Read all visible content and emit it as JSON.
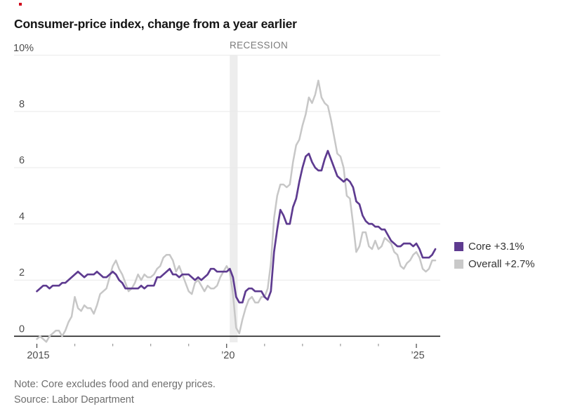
{
  "title": "Consumer-price index, change from a year earlier",
  "recession_label": "RECESSION",
  "note": "Note: Core excludes food and energy prices.",
  "source": "Source: Labor Department",
  "legend": {
    "position": "right",
    "items": [
      {
        "name": "Core",
        "label": "Core +3.1%",
        "color": "#5e3b90"
      },
      {
        "name": "Overall",
        "label": "Overall +2.7%",
        "color": "#c9c9c9"
      }
    ]
  },
  "colors": {
    "core_line": "#5e3b90",
    "overall_line": "#c7c7c7",
    "grid_line": "#e9e9e9",
    "zero_axis": "#1f1f1f",
    "tick_major": "#444444",
    "tick_minor": "#999999",
    "recession_band": "#ededed",
    "axis_text": "#4d4d4d",
    "red_dot": "#d0021b"
  },
  "chart_data": {
    "type": "line",
    "title": "Consumer-price index, change from a year earlier",
    "xlabel": "",
    "ylabel": "",
    "x_start_year": 2015,
    "x_interval": "monthly",
    "x_end_label": "Jul 2025",
    "ylim": [
      -0.5,
      10
    ],
    "grid": true,
    "y_ticks": [
      {
        "v": 0,
        "label": "0"
      },
      {
        "v": 2,
        "label": "2"
      },
      {
        "v": 4,
        "label": "4"
      },
      {
        "v": 6,
        "label": "6"
      },
      {
        "v": 8,
        "label": "8"
      },
      {
        "v": 10,
        "label": "10%"
      }
    ],
    "x_ticks": [
      {
        "year": 2015,
        "label": "2015",
        "major": true
      },
      {
        "year": 2016,
        "label": "",
        "major": false
      },
      {
        "year": 2017,
        "label": "",
        "major": false
      },
      {
        "year": 2018,
        "label": "",
        "major": false
      },
      {
        "year": 2019,
        "label": "",
        "major": false
      },
      {
        "year": 2020,
        "label": "’20",
        "major": true
      },
      {
        "year": 2021,
        "label": "",
        "major": false
      },
      {
        "year": 2022,
        "label": "",
        "major": false
      },
      {
        "year": 2023,
        "label": "",
        "major": false
      },
      {
        "year": 2024,
        "label": "",
        "major": false
      },
      {
        "year": 2025,
        "label": "’25",
        "major": true
      }
    ],
    "recession": {
      "label": "RECESSION",
      "start_year": 2020.083,
      "end_year": 2020.29
    },
    "series": [
      {
        "name": "Overall",
        "latest_label": "Overall +2.7%",
        "color_key": "overall_line",
        "values": [
          -0.1,
          0.0,
          -0.1,
          -0.2,
          0.0,
          0.1,
          0.2,
          0.2,
          0.0,
          0.2,
          0.5,
          0.7,
          1.4,
          1.0,
          0.9,
          1.1,
          1.0,
          1.0,
          0.8,
          1.1,
          1.5,
          1.6,
          1.7,
          2.1,
          2.5,
          2.7,
          2.4,
          2.2,
          1.9,
          1.6,
          1.7,
          1.9,
          2.2,
          2.0,
          2.2,
          2.1,
          2.1,
          2.2,
          2.4,
          2.5,
          2.8,
          2.9,
          2.9,
          2.7,
          2.3,
          2.5,
          2.2,
          1.9,
          1.6,
          1.5,
          1.9,
          2.0,
          1.8,
          1.6,
          1.8,
          1.7,
          1.7,
          1.8,
          2.1,
          2.3,
          2.5,
          2.3,
          1.5,
          0.3,
          0.1,
          0.6,
          1.0,
          1.3,
          1.4,
          1.2,
          1.2,
          1.4,
          1.4,
          1.7,
          2.6,
          4.2,
          5.0,
          5.4,
          5.4,
          5.3,
          5.4,
          6.2,
          6.8,
          7.0,
          7.5,
          7.9,
          8.5,
          8.3,
          8.6,
          9.1,
          8.5,
          8.3,
          8.2,
          7.7,
          7.1,
          6.5,
          6.4,
          6.0,
          5.0,
          4.9,
          4.0,
          3.0,
          3.2,
          3.7,
          3.7,
          3.2,
          3.1,
          3.4,
          3.1,
          3.2,
          3.5,
          3.4,
          3.3,
          3.0,
          2.9,
          2.5,
          2.4,
          2.6,
          2.7,
          2.9,
          3.0,
          2.8,
          2.4,
          2.3,
          2.4,
          2.7,
          2.7
        ]
      },
      {
        "name": "Core",
        "latest_label": "Core +3.1%",
        "color_key": "core_line",
        "values": [
          1.6,
          1.7,
          1.8,
          1.8,
          1.7,
          1.8,
          1.8,
          1.8,
          1.9,
          1.9,
          2.0,
          2.1,
          2.2,
          2.3,
          2.2,
          2.1,
          2.2,
          2.2,
          2.2,
          2.3,
          2.2,
          2.1,
          2.1,
          2.2,
          2.3,
          2.2,
          2.0,
          1.9,
          1.7,
          1.7,
          1.7,
          1.7,
          1.7,
          1.8,
          1.7,
          1.8,
          1.8,
          1.8,
          2.1,
          2.1,
          2.2,
          2.3,
          2.4,
          2.2,
          2.2,
          2.1,
          2.2,
          2.2,
          2.2,
          2.1,
          2.0,
          2.1,
          2.0,
          2.1,
          2.2,
          2.4,
          2.4,
          2.3,
          2.3,
          2.3,
          2.3,
          2.4,
          2.1,
          1.4,
          1.2,
          1.2,
          1.6,
          1.7,
          1.7,
          1.6,
          1.6,
          1.6,
          1.4,
          1.3,
          1.6,
          3.0,
          3.8,
          4.5,
          4.3,
          4.0,
          4.0,
          4.6,
          4.9,
          5.5,
          6.0,
          6.4,
          6.5,
          6.2,
          6.0,
          5.9,
          5.9,
          6.3,
          6.6,
          6.3,
          6.0,
          5.7,
          5.6,
          5.5,
          5.6,
          5.5,
          5.3,
          4.8,
          4.7,
          4.3,
          4.1,
          4.0,
          4.0,
          3.9,
          3.9,
          3.8,
          3.8,
          3.6,
          3.4,
          3.3,
          3.2,
          3.2,
          3.3,
          3.3,
          3.3,
          3.2,
          3.3,
          3.1,
          2.8,
          2.8,
          2.8,
          2.9,
          3.1
        ]
      }
    ]
  }
}
